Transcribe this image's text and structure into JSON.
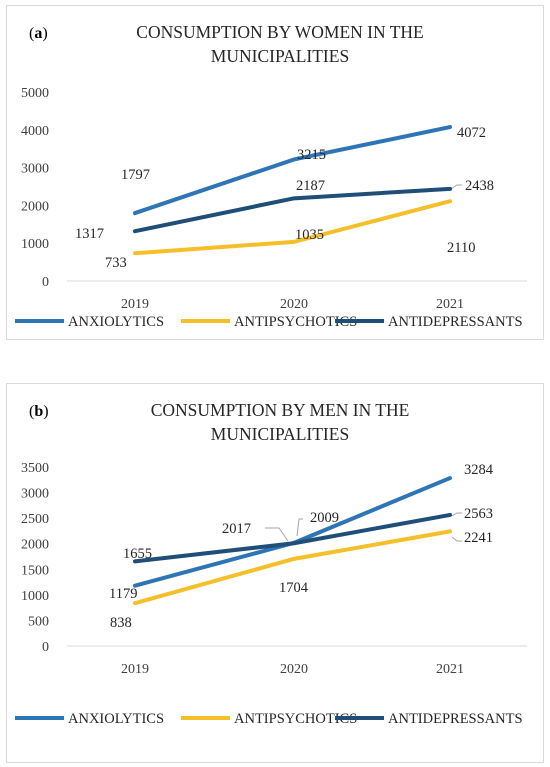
{
  "chart_data": [
    {
      "type": "line",
      "panel_label": "(a)",
      "title_lines": [
        "CONSUMPTION BY WOMEN IN THE",
        "MUNICIPALITIES"
      ],
      "categories": [
        "2019",
        "2020",
        "2021"
      ],
      "ylim": [
        0,
        5000
      ],
      "yticks": [
        "0",
        "1000",
        "2000",
        "3000",
        "4000",
        "5000"
      ],
      "grid": false,
      "legend_position": "bottom",
      "series": [
        {
          "name": "ANXIOLYTICS",
          "color": "#2E75B6",
          "values": [
            1797,
            3215,
            4072
          ],
          "labels": [
            "1797",
            "3215",
            "4072"
          ]
        },
        {
          "name": "ANTIPSYCHOTICS",
          "color": "#F5BF2A",
          "values": [
            733,
            1035,
            2110
          ],
          "labels": [
            "733",
            "1035",
            "2110"
          ]
        },
        {
          "name": "ANTIDEPRESSANTS",
          "color": "#1F4E79",
          "values": [
            1317,
            2187,
            2438
          ],
          "labels": [
            "1317",
            "2187",
            "2438"
          ]
        }
      ]
    },
    {
      "type": "line",
      "panel_label": "(b)",
      "title_lines": [
        "CONSUMPTION BY MEN IN THE",
        "MUNICIPALITIES"
      ],
      "categories": [
        "2019",
        "2020",
        "2021"
      ],
      "ylim": [
        0,
        3500
      ],
      "yticks": [
        "0",
        "500",
        "1000",
        "1500",
        "2000",
        "2500",
        "3000",
        "3500"
      ],
      "grid": false,
      "legend_position": "bottom",
      "series": [
        {
          "name": "ANXIOLYTICS",
          "color": "#2E75B6",
          "values": [
            1179,
            2017,
            3284
          ],
          "labels": [
            "1179",
            "2017",
            "3284"
          ]
        },
        {
          "name": "ANTIPSYCHOTICS",
          "color": "#F5BF2A",
          "values": [
            838,
            1704,
            2241
          ],
          "labels": [
            "838",
            "1704",
            "2241"
          ]
        },
        {
          "name": "ANTIDEPRESSANTS",
          "color": "#1F4E79",
          "values": [
            1655,
            2009,
            2563
          ],
          "labels": [
            "1655",
            "2009",
            "2563"
          ]
        }
      ]
    }
  ]
}
